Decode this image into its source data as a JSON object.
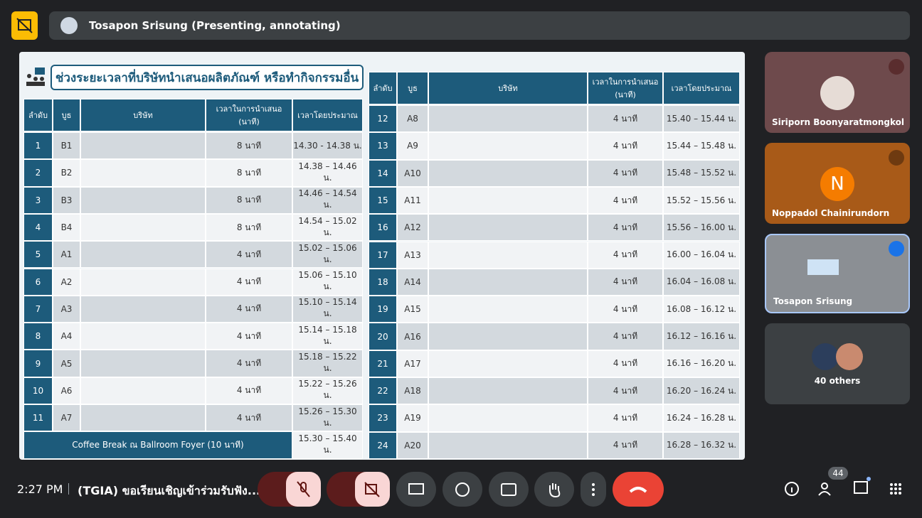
{
  "header": {
    "presenter": "Tosapon Srisung (Presenting, annotating)"
  },
  "slide": {
    "title": "ช่วงระยะเวลาที่บริษัทนำเสนอผลิตภัณฑ์ หรือทำกิจกรรมอื่น",
    "left_table": {
      "headers": [
        "ลำดับ",
        "บูธ",
        "บริษัท",
        "เวลาในการนำเสนอ (นาที)",
        "เวลาโดยประมาณ"
      ],
      "rows": [
        [
          "1",
          "B1",
          "8 นาที",
          "14.30 - 14.38 น."
        ],
        [
          "2",
          "B2",
          "8 นาที",
          "14.38 – 14.46 น."
        ],
        [
          "3",
          "B3",
          "8 นาที",
          "14.46 – 14.54 น."
        ],
        [
          "4",
          "B4",
          "8 นาที",
          "14.54 – 15.02 น."
        ],
        [
          "5",
          "A1",
          "4 นาที",
          "15.02 – 15.06 น."
        ],
        [
          "6",
          "A2",
          "4 นาที",
          "15.06 – 15.10 น."
        ],
        [
          "7",
          "A3",
          "4 นาที",
          "15.10 – 15.14 น."
        ],
        [
          "8",
          "A4",
          "4 นาที",
          "15.14 – 15.18 น."
        ],
        [
          "9",
          "A5",
          "4 นาที",
          "15.18 – 15.22 น."
        ],
        [
          "10",
          "A6",
          "4 นาที",
          "15.22 – 15.26 น."
        ],
        [
          "11",
          "A7",
          "4 นาที",
          "15.26 – 15.30 น."
        ]
      ],
      "footer": [
        "Coffee Break ณ Ballroom Foyer (10 นาที)",
        "15.30 – 15.40 น."
      ]
    },
    "right_table": {
      "headers": [
        "ลำดับ",
        "บูธ",
        "บริษัท",
        "เวลาในการนำเสนอ (นาที)",
        "เวลาโดยประมาณ"
      ],
      "rows": [
        [
          "12",
          "A8",
          "4 นาที",
          "15.40 – 15.44 น."
        ],
        [
          "13",
          "A9",
          "4 นาที",
          "15.44 – 15.48 น."
        ],
        [
          "14",
          "A10",
          "4 นาที",
          "15.48 – 15.52 น."
        ],
        [
          "15",
          "A11",
          "4 นาที",
          "15.52 – 15.56 น."
        ],
        [
          "16",
          "A12",
          "4 นาที",
          "15.56 – 16.00 น."
        ],
        [
          "17",
          "A13",
          "4 นาที",
          "16.00 – 16.04 น."
        ],
        [
          "18",
          "A14",
          "4 นาที",
          "16.04 – 16.08 น."
        ],
        [
          "19",
          "A15",
          "4 นาที",
          "16.08 – 16.12 น."
        ],
        [
          "20",
          "A16",
          "4 นาที",
          "16.12 – 16.16 น."
        ],
        [
          "21",
          "A17",
          "4 นาที",
          "16.16 – 16.20 น."
        ],
        [
          "22",
          "A18",
          "4 นาที",
          "16.20 – 16.24 น."
        ],
        [
          "23",
          "A19",
          "4 นาที",
          "16.24 – 16.28 น."
        ],
        [
          "24",
          "A20",
          "4 นาที",
          "16.28 – 16.32 น."
        ]
      ]
    }
  },
  "participants": {
    "tiles": [
      {
        "name": "Siriporn Boonyaratmongkol"
      },
      {
        "name": "Noppadol Chainirundorn",
        "initial": "N"
      },
      {
        "name": "Tosapon Srisung"
      }
    ],
    "others": "40 others"
  },
  "bottom_bar": {
    "time": "2:27 PM",
    "meeting_title": "(TGIA) ขอเรียนเชิญเข้าร่วมรับฟัง...",
    "participant_count": "44"
  }
}
